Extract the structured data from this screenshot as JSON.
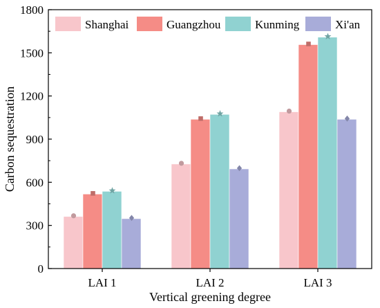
{
  "chart_data": {
    "type": "bar",
    "title": "",
    "xlabel": "Vertical greening degree",
    "ylabel": "Carbon sequestration",
    "categories": [
      "LAI 1",
      "LAI 2",
      "LAI 3"
    ],
    "ylim": [
      0,
      1800
    ],
    "yticks": [
      0,
      300,
      600,
      900,
      1200,
      1500,
      1800
    ],
    "grid": false,
    "legend_position": "top",
    "series": [
      {
        "name": "Shanghai",
        "values": [
          362,
          727,
          1090
        ],
        "color": "#f8c6cb",
        "marker": "circle"
      },
      {
        "name": "Guangzhou",
        "values": [
          518,
          1038,
          1557
        ],
        "color": "#f58c86",
        "marker": "square"
      },
      {
        "name": "Kunming",
        "values": [
          537,
          1072,
          1609
        ],
        "color": "#90d2d1",
        "marker": "star"
      },
      {
        "name": "Xi'an",
        "values": [
          347,
          693,
          1038
        ],
        "color": "#a8acd9",
        "marker": "diamond"
      }
    ]
  }
}
